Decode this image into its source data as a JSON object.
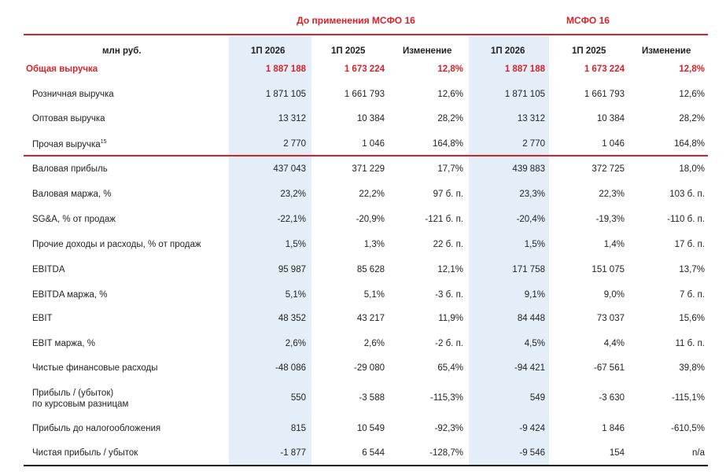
{
  "groups": {
    "before": "До применения МСФО 16",
    "after": "МСФО 16"
  },
  "header": {
    "unit": "млн руб.",
    "cols": [
      "1П 2026",
      "1П 2025",
      "Изменение",
      "1П 2026",
      "1П 2025",
      "Изменение"
    ]
  },
  "total": {
    "label": "Общая выручка",
    "values": [
      "1 887 188",
      "1 673 224",
      "12,8%",
      "1 887 188",
      "1 673 224",
      "12,8%"
    ]
  },
  "rows": [
    {
      "label": "Розничная выручка",
      "values": [
        "1 871 105",
        "1 661 793",
        "12,6%",
        "1 871 105",
        "1 661 793",
        "12,6%"
      ]
    },
    {
      "label": "Оптовая выручка",
      "values": [
        "13 312",
        "10 384",
        "28,2%",
        "13 312",
        "10 384",
        "28,2%"
      ]
    },
    {
      "label": "Прочая выручка",
      "sup": "15",
      "values": [
        "2 770",
        "1 046",
        "164,8%",
        "2 770",
        "1 046",
        "164,8%"
      ]
    },
    {
      "label": "Валовая прибыль",
      "values": [
        "437 043",
        "371 229",
        "17,7%",
        "439 883",
        "372 725",
        "18,0%"
      ]
    },
    {
      "label": "Валовая маржа, %",
      "values": [
        "23,2%",
        "22,2%",
        "97 б. п.",
        "23,3%",
        "22,3%",
        "103 б. п."
      ]
    },
    {
      "label": "SG&A, % от продаж",
      "values": [
        "-22,1%",
        "-20,9%",
        "-121 б. п.",
        "-20,4%",
        "-19,3%",
        "-110 б. п."
      ]
    },
    {
      "label": "Прочие доходы и расходы, % от продаж",
      "values": [
        "1,5%",
        "1,3%",
        "22 б. п.",
        "1,5%",
        "1,4%",
        "17 б. п."
      ]
    },
    {
      "label": "EBITDA",
      "values": [
        "95 987",
        "85 628",
        "12,1%",
        "171 758",
        "151 075",
        "13,7%"
      ]
    },
    {
      "label": "EBITDA маржа, %",
      "values": [
        "5,1%",
        "5,1%",
        "-3 б. п.",
        "9,1%",
        "9,0%",
        "7 б. п."
      ]
    },
    {
      "label": "EBIT",
      "values": [
        "48 352",
        "43 217",
        "11,9%",
        "84 448",
        "73 037",
        "15,6%"
      ]
    },
    {
      "label": "EBIT маржа, %",
      "values": [
        "2,6%",
        "2,6%",
        "-2 б. п.",
        "4,5%",
        "4,4%",
        "11 б. п."
      ]
    },
    {
      "label": "Чистые финансовые расходы",
      "values": [
        "-48 086",
        "-29 080",
        "65,4%",
        "-94 421",
        "-67 561",
        "39,8%"
      ]
    },
    {
      "label": "Прибыль / (убыток)",
      "label2": "по курсовым разницам",
      "values": [
        "550",
        "-3 588",
        "-115,3%",
        "549",
        "-3 630",
        "-115,1%"
      ]
    },
    {
      "label": "Прибыль до налогообложения",
      "values": [
        "815",
        "10 549",
        "-92,3%",
        "-9 424",
        "1 846",
        "-610,5%"
      ]
    },
    {
      "label": "Чистая прибыль / убыток",
      "values": [
        "-1 877",
        "6 544",
        "-128,7%",
        "-9 546",
        "154",
        "n/a"
      ]
    }
  ],
  "colors": {
    "accent": "#d8222a",
    "highlight": "#e3eef8"
  }
}
